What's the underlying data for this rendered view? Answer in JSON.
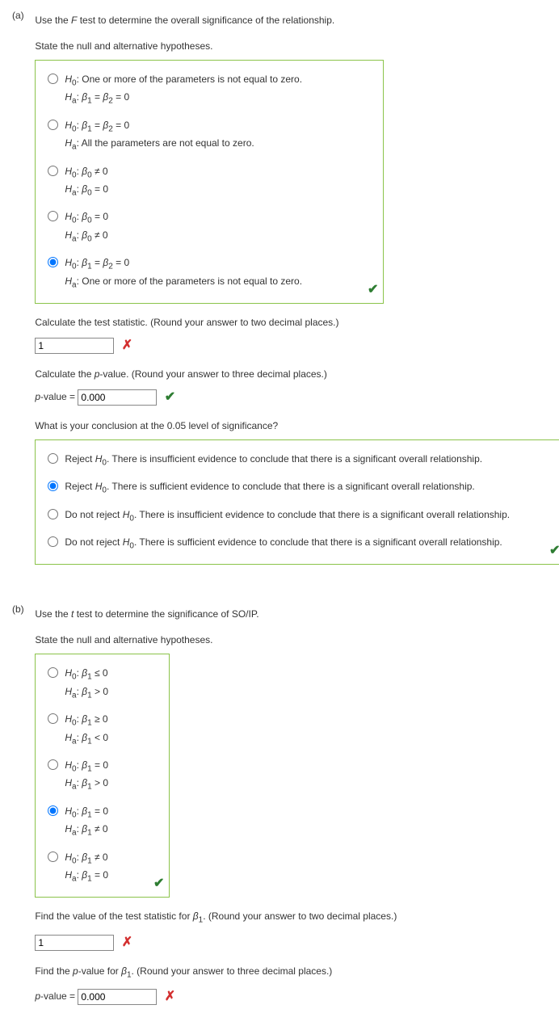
{
  "partA": {
    "label": "(a)",
    "q1": "Use the F test to determine the overall significance of the relationship.",
    "q2": "State the null and alternative hypotheses.",
    "options": [
      {
        "h0": "H₀: One or more of the parameters is not equal to zero.",
        "ha": "Hₐ: β₁ = β₂ = 0",
        "selected": false
      },
      {
        "h0": "H₀: β₁ = β₂ = 0",
        "ha": "Hₐ: All the parameters are not equal to zero.",
        "selected": false
      },
      {
        "h0": "H₀: β₀ ≠ 0",
        "ha": "Hₐ: β₀ = 0",
        "selected": false
      },
      {
        "h0": "H₀: β₀ = 0",
        "ha": "Hₐ: β₀ ≠ 0",
        "selected": false
      },
      {
        "h0": "H₀: β₁ = β₂ = 0",
        "ha": "Hₐ: One or more of the parameters is not equal to zero.",
        "selected": true
      }
    ],
    "calc_stat_label": "Calculate the test statistic. (Round your answer to two decimal places.)",
    "calc_stat_value": "1",
    "calc_stat_mark": "✗",
    "pval_label": "Calculate the p-value. (Round your answer to three decimal places.)",
    "pval_prefix": "p-value = ",
    "pval_value": "0.000",
    "pval_mark": "✔",
    "concl_label": "What is your conclusion at the 0.05 level of significance?",
    "concl_options": [
      {
        "text": "Reject H₀. There is insufficient evidence to conclude that there is a significant overall relationship.",
        "selected": false
      },
      {
        "text": "Reject H₀. There is sufficient evidence to conclude that there is a significant overall relationship.",
        "selected": true
      },
      {
        "text": "Do not reject H₀. There is insufficient evidence to conclude that there is a significant overall relationship.",
        "selected": false
      },
      {
        "text": "Do not reject H₀. There is sufficient evidence to conclude that there is a significant overall relationship.",
        "selected": false
      }
    ]
  },
  "partB": {
    "label": "(b)",
    "q1": "Use the t test to determine the significance of SO/IP.",
    "q2": "State the null and alternative hypotheses.",
    "options": [
      {
        "h0": "H₀: β₁ ≤ 0",
        "ha": "Hₐ: β₁ > 0",
        "selected": false
      },
      {
        "h0": "H₀: β₁ ≥ 0",
        "ha": "Hₐ: β₁ < 0",
        "selected": false
      },
      {
        "h0": "H₀: β₁ = 0",
        "ha": "Hₐ: β₁ > 0",
        "selected": false
      },
      {
        "h0": "H₀: β₁ = 0",
        "ha": "Hₐ: β₁ ≠ 0",
        "selected": true
      },
      {
        "h0": "H₀: β₁ ≠ 0",
        "ha": "Hₐ: β₁ = 0",
        "selected": false
      }
    ],
    "stat_label": "Find the value of the test statistic for β₁. (Round your answer to two decimal places.)",
    "stat_value": "1",
    "stat_mark": "✗",
    "pval_label": "Find the p-value for β₁. (Round your answer to three decimal places.)",
    "pval_prefix": "p-value = ",
    "pval_value": "0.000",
    "pval_mark": "✗"
  }
}
